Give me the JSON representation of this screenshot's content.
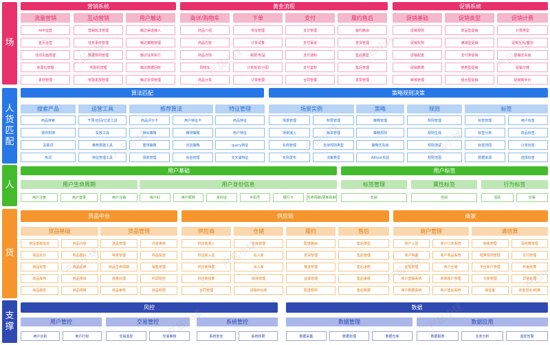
{
  "colors": {
    "pink_dark": "#e8306d",
    "pink_mid": "#f4b7cb",
    "pink_border": "#f7a6c0",
    "pink_text": "#e8306d",
    "blue_dark": "#2877e6",
    "blue_mid": "#b7d3f5",
    "blue_border": "#8db8ee",
    "blue_text": "#2b6fd1",
    "green_dark": "#44bb2d",
    "green_mid": "#bde7b4",
    "green_border": "#9ad98c",
    "green_text": "#3b9a2a",
    "orange_dark": "#f6952b",
    "orange_mid": "#fbd7ad",
    "orange_border": "#f8c386",
    "orange_text": "#e27c14",
    "navy_dark": "#2f49b0",
    "navy_mid": "#aab7e8",
    "navy_border": "#94a5e2",
    "navy_text": "#2f49b0"
  },
  "watermark": "产品小球",
  "sections": [
    {
      "id": "chang",
      "label": "场",
      "theme": "pink"
    },
    {
      "id": "renhuopi",
      "label": "人\n货\n匹\n配",
      "theme": "blue"
    },
    {
      "id": "ren",
      "label": "人",
      "theme": "green"
    },
    {
      "id": "huo",
      "label": "货",
      "theme": "orange"
    },
    {
      "id": "zhicheng",
      "label": "支\n撑",
      "theme": "navy"
    }
  ],
  "chang": {
    "headers": [
      "营销系统",
      "黄金流程",
      "促销系统"
    ],
    "columns": [
      {
        "title": "流量营销",
        "items": [
          "APP运营",
          "首页运营",
          "活动页面搭建",
          "资源位管理",
          "素材管理"
        ]
      },
      {
        "title": "互动营销",
        "items": [
          "营销玩法管理",
          "任务事件管理",
          "数据规则管理",
          "奖励机管理",
          "奖励发放管理"
        ]
      },
      {
        "title": "用户触达",
        "items": [
          "触达渠道接入",
          "触达策略管理",
          "触达任务执行",
          "触达数据回收",
          "触达反馈管理"
        ]
      },
      {
        "title": "商详/购物车",
        "items": [
          "商品介绍",
          "商品内容",
          "商品详情",
          "购物车",
          "商品分享"
        ]
      },
      {
        "title": "下单",
        "items": [
          "地址管理",
          "订单试算",
          "邮费/权益",
          "订单拆单/分配",
          "订单管理"
        ]
      },
      {
        "title": "支付",
        "items": [
          "支付管理",
          "支付渠道",
          "支付通知",
          "支付鉴权",
          "合同管理"
        ]
      },
      {
        "title": "履约售后",
        "items": [
          "履约路由",
          "发货管理",
          "售后类型",
          "售后管理",
          "发票管理"
        ]
      },
      {
        "title": "促销基础",
        "items": [
          "促销规则",
          "促销实例",
          "促销配置",
          "促销数据",
          "审核管理"
        ]
      },
      {
        "title": "促销类型",
        "items": [
          "单品型促销",
          "满减型促销",
          "支付类促销",
          "券类型促销",
          "组合型促销"
        ]
      },
      {
        "title": "促销计费",
        "items": [
          "计费类型",
          "促销互斥/叠加",
          "促销优先级",
          "促销分摊",
          "促销到手价"
        ]
      }
    ]
  },
  "renhuopi": {
    "headers": [
      "算法匹配",
      "策略规则决策"
    ],
    "subs": [
      {
        "title": "搜索产品",
        "items": [
          "商品搜索",
          "猜你想搜",
          "关联词",
          "热词"
        ]
      },
      {
        "title": "运营工具",
        "items": [
          "干预/召回/过滤工具",
          "投放工具",
          "推荐搭建工具",
          "特征管理工具"
        ]
      },
      {
        "title": "推荐算法",
        "items": [
          "商品评分卡",
          "相似策略",
          "重排策略",
          "场景管理",
          "用户特征卡",
          "精排策略",
          "召回策略",
          "实验管理"
        ]
      },
      {
        "title": "特征管理",
        "items": [
          "商品特征",
          "用户特征",
          "query特征",
          "交叉域特征"
        ]
      },
      {
        "title": "场景实例",
        "items": [
          "场景管理",
          "场景接入",
          "实例管理",
          "实例发布",
          "权限管理",
          "版本管理",
          "支持规则类型",
          "决策类型"
        ]
      },
      {
        "title": "策略",
        "items": [
          "策略管理",
          "策略规则",
          "策略优先级",
          "ABtest实验"
        ]
      },
      {
        "title": "规则",
        "items": [
          "规则管理",
          "规则生成",
          "规则测试",
          "规则范围"
        ]
      },
      {
        "title": "标签",
        "items": [
          "标签管理",
          "标签分类",
          "标签范围",
          "数据来源",
          "用户标签",
          "商品标签",
          "订单标签",
          "选择标签"
        ]
      }
    ]
  },
  "ren": {
    "headers": [
      "用户基础",
      "用户标签"
    ],
    "subs": [
      {
        "title": "用户生命周期",
        "items": [
          "用户注册",
          "用户登录",
          "用户注销"
        ]
      },
      {
        "title": "用户身份信息",
        "items": [
          "用户ID",
          "用户昵称",
          "身份证",
          "手机号",
          "银行卡",
          "生命周期/更新机制"
        ]
      },
      {
        "title": "标签管理",
        "items": [
          "年龄"
        ]
      },
      {
        "title": "属性标签",
        "items": [
          "性别"
        ]
      },
      {
        "title": "行为标签",
        "items": [
          "活跃",
          "交易"
        ]
      }
    ]
  },
  "huo": {
    "headers": [
      "货品中台",
      "供应链",
      "商家"
    ],
    "subs": [
      {
        "title": "货品基础",
        "items": [
          "商品基础信息",
          "商品定价",
          "商品标签",
          "商品库存",
          "商品属性",
          "商品内容",
          "商品图片",
          "商品品牌",
          "商品类目",
          "商品规格"
        ]
      },
      {
        "title": "货品管理",
        "items": [
          "选品管理",
          "特单管理",
          "商品生命周期",
          "批量处理",
          "商品审核",
          "内容审核",
          "商品投放",
          "销售管理",
          "利润管控",
          "商品权限"
        ]
      },
      {
        "title": "供应商",
        "items": [
          "供应商准入",
          "供应商入驻",
          "供应商档案",
          "供应商结算",
          "合同管理"
        ]
      },
      {
        "title": "仓储",
        "items": [
          "仓库管理",
          "出入库",
          "出入库",
          "库存管理",
          "进销存台账"
        ]
      },
      {
        "title": "履约",
        "items": [
          "配送路由",
          "发货管理",
          "物流管理",
          "运单管理",
          "配送规则"
        ]
      },
      {
        "title": "售后",
        "items": [
          "售后类型",
          "售后管理",
          "售后退款",
          "售后审核",
          "售后数据"
        ]
      },
      {
        "title": "商户管理",
        "items": [
          "商户入驻",
          "商户档案",
          "合同管理",
          "商户营销系统",
          "商户数据系统",
          "商户订单系统",
          "商户商品系统",
          "商户仓储",
          "商家账户管理",
          "商户售后系统"
        ]
      },
      {
        "title": "清结算",
        "items": [
          "佣金管理",
          "结算规则管理",
          "平台账户管理",
          "分账管理",
          "保证金",
          "清结算管理",
          "支付管理",
          "补差结算",
          "异常处理",
          "资金流水/结算"
        ]
      }
    ]
  },
  "zhicheng": {
    "headers": [
      "风控",
      "数据"
    ],
    "subs": [
      {
        "title": "用户管控",
        "items": [
          "用户识别",
          "用户打标"
        ]
      },
      {
        "title": "交易管控",
        "items": [
          "交易监控",
          "交易审核"
        ]
      },
      {
        "title": "系统管控",
        "items": [
          "系统安全",
          "系统权限"
        ]
      },
      {
        "title": "数据管理",
        "items": [
          "数据采集",
          "数据处理",
          "数据仓库"
        ]
      },
      {
        "title": "数据应用",
        "items": [
          "数据报表",
          "业务分析",
          "监控告警"
        ]
      }
    ]
  }
}
